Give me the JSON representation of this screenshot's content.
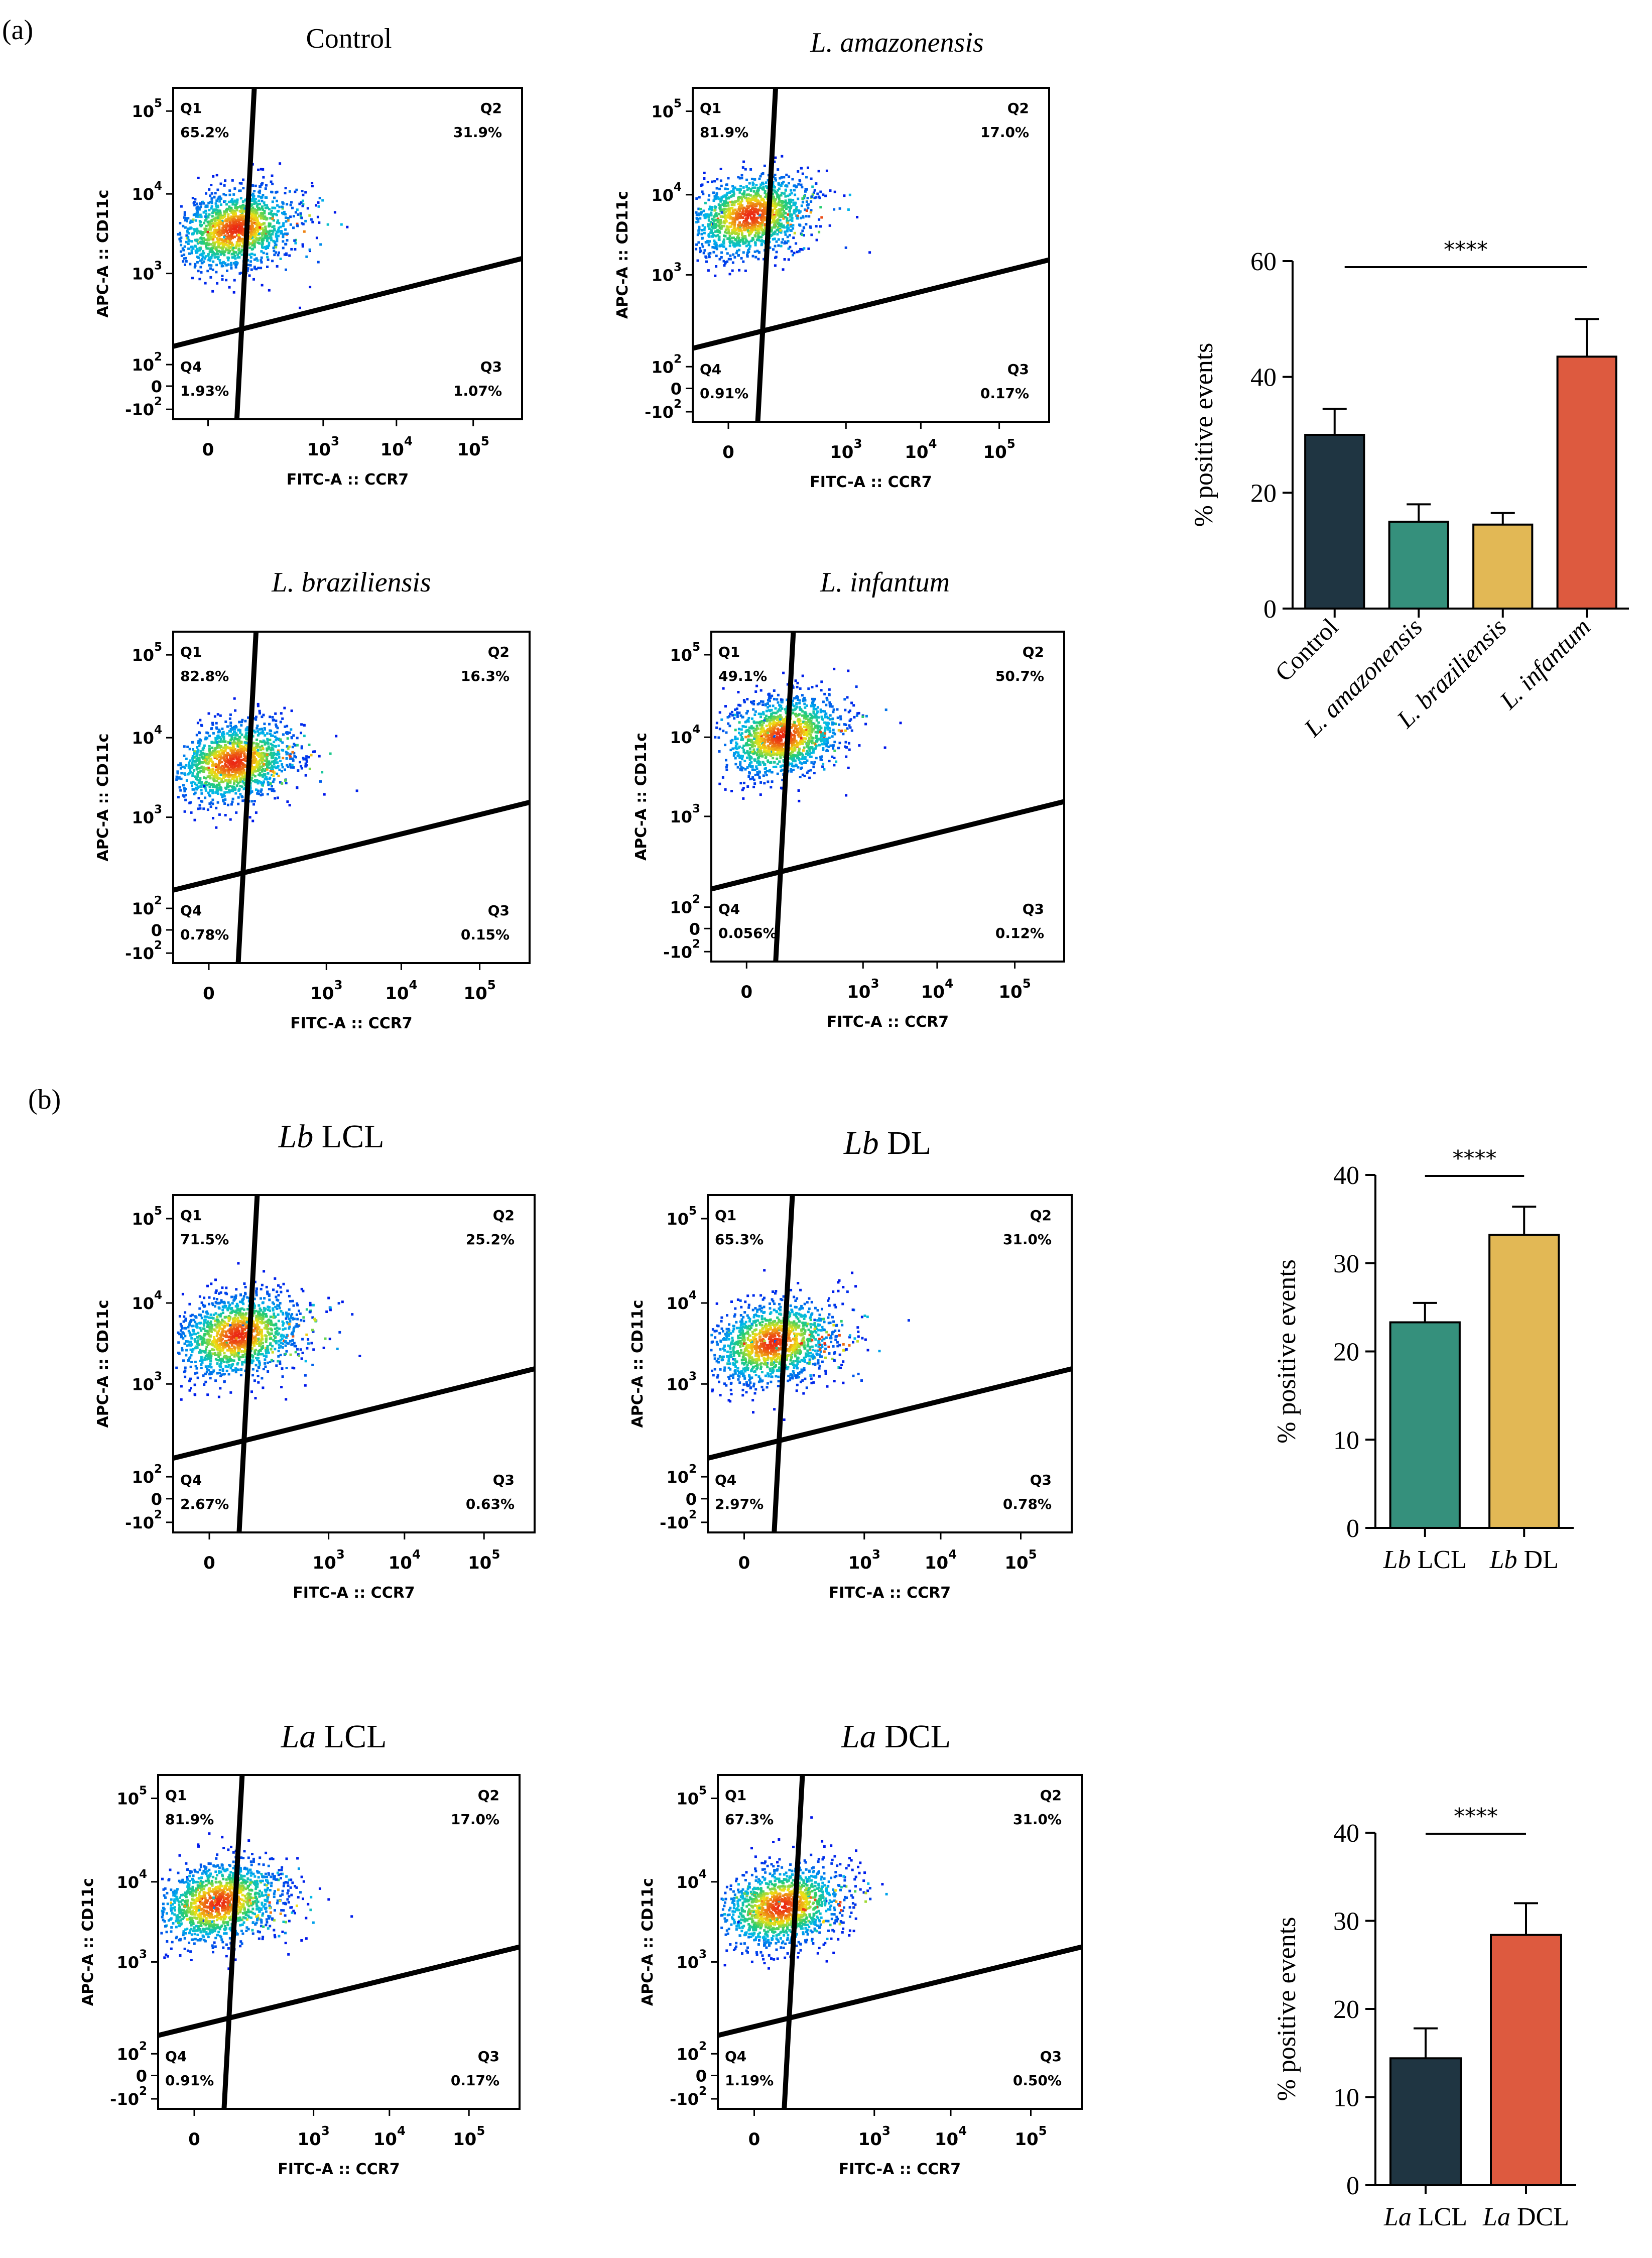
{
  "figure": {
    "panels": [
      {
        "label": "(a)"
      },
      {
        "label": "(b)"
      }
    ]
  },
  "chart_data": [
    {
      "type": "scatter",
      "kind": "flow-cytometry-quadrant-plot",
      "panel": "(a)",
      "title": "Control",
      "title_italic": false,
      "xlabel": "FITC-A :: CCR7",
      "ylabel": "APC-A :: CD11c",
      "x_ticks": [
        "0",
        "10^3",
        "10^4",
        "10^5"
      ],
      "y_ticks": [
        "-10^2",
        "0",
        "10^2",
        "10^3",
        "10^4",
        "10^5"
      ],
      "population_center": [
        0.3,
        2.85
      ],
      "quadrants": [
        {
          "name": "Q1",
          "percent": "65.2%"
        },
        {
          "name": "Q2",
          "percent": "31.9%"
        },
        {
          "name": "Q3",
          "percent": "1.07%"
        },
        {
          "name": "Q4",
          "percent": "1.93%"
        }
      ]
    },
    {
      "type": "scatter",
      "kind": "flow-cytometry-quadrant-plot",
      "panel": "(a)",
      "title": "L. amazonensis",
      "title_italic": true,
      "xlabel": "FITC-A :: CCR7",
      "ylabel": "APC-A :: CD11c",
      "x_ticks": [
        "0",
        "10^3",
        "10^4",
        "10^5"
      ],
      "y_ticks": [
        "-10^2",
        "0",
        "10^2",
        "10^3",
        "10^4",
        "10^5"
      ],
      "population_center": [
        0.1,
        3.05
      ],
      "quadrants": [
        {
          "name": "Q1",
          "percent": "81.9%"
        },
        {
          "name": "Q2",
          "percent": "17.0%"
        },
        {
          "name": "Q3",
          "percent": "0.17%"
        },
        {
          "name": "Q4",
          "percent": "0.91%"
        }
      ]
    },
    {
      "type": "scatter",
      "kind": "flow-cytometry-quadrant-plot",
      "panel": "(a)",
      "title": "L. braziliensis",
      "title_italic": true,
      "xlabel": "FITC-A :: CCR7",
      "ylabel": "APC-A :: CD11c",
      "x_ticks": [
        "0",
        "10^3",
        "10^4",
        "10^5"
      ],
      "y_ticks": [
        "-10^2",
        "0",
        "10^2",
        "10^3",
        "10^4",
        "10^5"
      ],
      "population_center": [
        0.2,
        3.0
      ],
      "quadrants": [
        {
          "name": "Q1",
          "percent": "82.8%"
        },
        {
          "name": "Q2",
          "percent": "16.3%"
        },
        {
          "name": "Q3",
          "percent": "0.15%"
        },
        {
          "name": "Q4",
          "percent": "0.78%"
        }
      ]
    },
    {
      "type": "scatter",
      "kind": "flow-cytometry-quadrant-plot",
      "panel": "(a)",
      "title": "L. infantum",
      "title_italic": true,
      "xlabel": "FITC-A :: CCR7",
      "ylabel": "APC-A :: CD11c",
      "x_ticks": [
        "0",
        "10^3",
        "10^4",
        "10^5"
      ],
      "y_ticks": [
        "-10^2",
        "0",
        "10^2",
        "10^3",
        "10^4",
        "10^5"
      ],
      "population_center": [
        0.55,
        3.35
      ],
      "quadrants": [
        {
          "name": "Q1",
          "percent": "49.1%"
        },
        {
          "name": "Q2",
          "percent": "50.7%"
        },
        {
          "name": "Q3",
          "percent": "0.12%"
        },
        {
          "name": "Q4",
          "percent": "0.056%"
        }
      ]
    },
    {
      "type": "bar",
      "panel": "(a)",
      "categories": [
        "Control",
        "L. amazonensis",
        "L. braziliensis",
        "L. infantum"
      ],
      "values": [
        30,
        15,
        14.5,
        43.5
      ],
      "errors": [
        4.5,
        3,
        2,
        6.5
      ],
      "colors": [
        "#1f3542",
        "#35907c",
        "#e2b855",
        "#dd5a3f"
      ],
      "ylabel": "% positive events",
      "ylim": [
        0,
        60
      ],
      "yticks": [
        0,
        20,
        40,
        60
      ],
      "significance": {
        "label": "****",
        "from": 0,
        "to": 3
      }
    },
    {
      "type": "scatter",
      "kind": "flow-cytometry-quadrant-plot",
      "panel": "(b)",
      "title_parts": [
        {
          "text": "Lb",
          "italic": true
        },
        {
          "text": " LCL",
          "italic": false
        }
      ],
      "xlabel": "FITC-A :: CCR7",
      "ylabel": "APC-A :: CD11c",
      "x_ticks": [
        "0",
        "10^3",
        "10^4",
        "10^5"
      ],
      "y_ticks": [
        "-10^2",
        "0",
        "10^2",
        "10^3",
        "10^4",
        "10^5"
      ],
      "population_center": [
        0.3,
        2.9
      ],
      "quadrants": [
        {
          "name": "Q1",
          "percent": "71.5%"
        },
        {
          "name": "Q2",
          "percent": "25.2%"
        },
        {
          "name": "Q3",
          "percent": "0.63%"
        },
        {
          "name": "Q4",
          "percent": "2.67%"
        }
      ]
    },
    {
      "type": "scatter",
      "kind": "flow-cytometry-quadrant-plot",
      "panel": "(b)",
      "title_parts": [
        {
          "text": "Lb",
          "italic": true
        },
        {
          "text": " DL",
          "italic": false
        }
      ],
      "xlabel": "FITC-A :: CCR7",
      "ylabel": "APC-A :: CD11c",
      "x_ticks": [
        "0",
        "10^3",
        "10^4",
        "10^5"
      ],
      "y_ticks": [
        "-10^2",
        "0",
        "10^2",
        "10^3",
        "10^4",
        "10^5"
      ],
      "population_center": [
        0.3,
        2.8
      ],
      "quadrants": [
        {
          "name": "Q1",
          "percent": "65.3%"
        },
        {
          "name": "Q2",
          "percent": "31.0%"
        },
        {
          "name": "Q3",
          "percent": "0.78%"
        },
        {
          "name": "Q4",
          "percent": "2.97%"
        }
      ]
    },
    {
      "type": "bar",
      "panel": "(b)",
      "categories_parts": [
        [
          {
            "text": "Lb",
            "italic": true
          },
          {
            "text": " LCL",
            "italic": false
          }
        ],
        [
          {
            "text": "Lb",
            "italic": true
          },
          {
            "text": " DL",
            "italic": false
          }
        ]
      ],
      "values": [
        23.3,
        33.2
      ],
      "errors": [
        2.2,
        3.2
      ],
      "colors": [
        "#35907c",
        "#e2b855"
      ],
      "ylabel": "% positive events",
      "ylim": [
        0,
        40
      ],
      "yticks": [
        0,
        10,
        20,
        30,
        40
      ],
      "significance": {
        "label": "****",
        "from": 0,
        "to": 1
      }
    },
    {
      "type": "scatter",
      "kind": "flow-cytometry-quadrant-plot",
      "panel": "(b)",
      "title_parts": [
        {
          "text": "La",
          "italic": true
        },
        {
          "text": " LCL",
          "italic": false
        }
      ],
      "xlabel": "FITC-A :: CCR7",
      "ylabel": "APC-A :: CD11c",
      "x_ticks": [
        "0",
        "10^3",
        "10^4",
        "10^5"
      ],
      "y_ticks": [
        "-10^2",
        "0",
        "10^2",
        "10^3",
        "10^4",
        "10^5"
      ],
      "population_center": [
        0.15,
        3.05
      ],
      "quadrants": [
        {
          "name": "Q1",
          "percent": "81.9%"
        },
        {
          "name": "Q2",
          "percent": "17.0%"
        },
        {
          "name": "Q3",
          "percent": "0.17%"
        },
        {
          "name": "Q4",
          "percent": "0.91%"
        }
      ]
    },
    {
      "type": "scatter",
      "kind": "flow-cytometry-quadrant-plot",
      "panel": "(b)",
      "title_parts": [
        {
          "text": "La",
          "italic": true
        },
        {
          "text": " DCL",
          "italic": false
        }
      ],
      "xlabel": "FITC-A :: CCR7",
      "ylabel": "APC-A :: CD11c",
      "x_ticks": [
        "0",
        "10^3",
        "10^4",
        "10^5"
      ],
      "y_ticks": [
        "-10^2",
        "0",
        "10^2",
        "10^3",
        "10^4",
        "10^5"
      ],
      "population_center": [
        0.25,
        3.0
      ],
      "quadrants": [
        {
          "name": "Q1",
          "percent": "67.3%"
        },
        {
          "name": "Q2",
          "percent": "31.0%"
        },
        {
          "name": "Q3",
          "percent": "0.50%"
        },
        {
          "name": "Q4",
          "percent": "1.19%"
        }
      ]
    },
    {
      "type": "bar",
      "panel": "(b)",
      "categories_parts": [
        [
          {
            "text": "La",
            "italic": true
          },
          {
            "text": " LCL",
            "italic": false
          }
        ],
        [
          {
            "text": "La",
            "italic": true
          },
          {
            "text": " DCL",
            "italic": false
          }
        ]
      ],
      "values": [
        14.4,
        28.4
      ],
      "errors": [
        3.4,
        3.6
      ],
      "colors": [
        "#1f3542",
        "#dd5a3f"
      ],
      "ylabel": "% positive events",
      "ylim": [
        0,
        40
      ],
      "yticks": [
        0,
        10,
        20,
        30,
        40
      ],
      "significance": {
        "label": "****",
        "from": 0,
        "to": 1
      }
    }
  ]
}
